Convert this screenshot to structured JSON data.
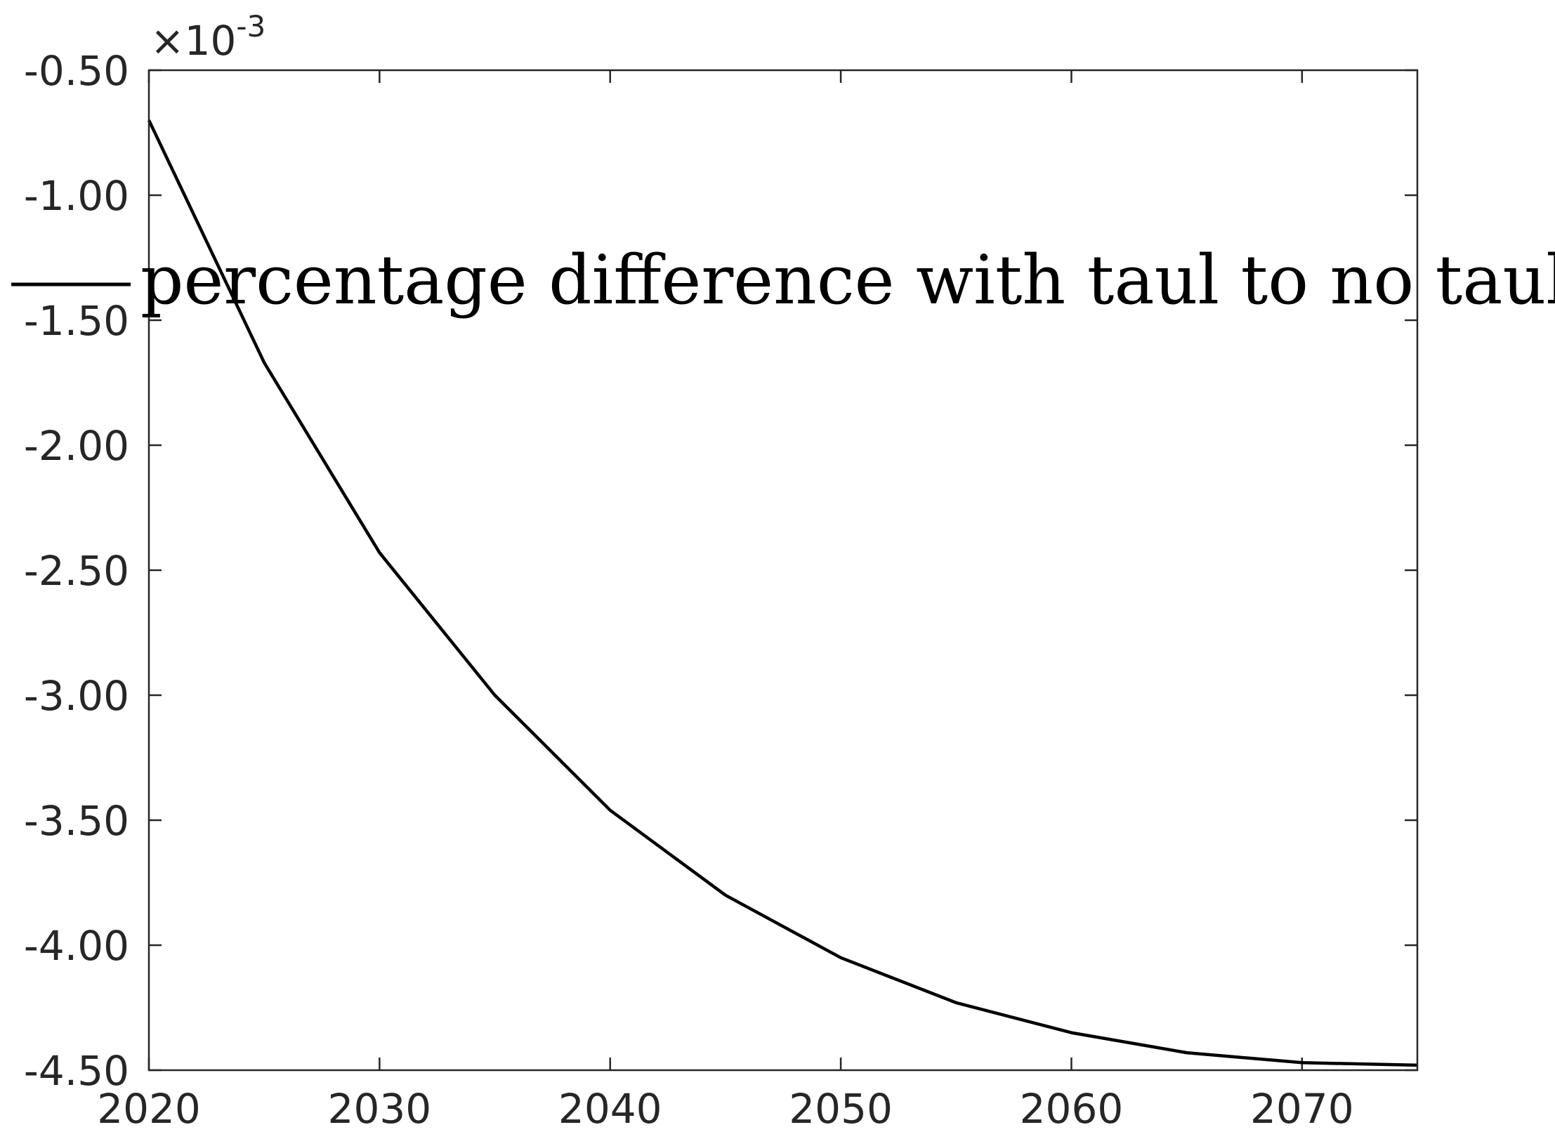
{
  "chart_data": {
    "type": "line",
    "title": "",
    "xlabel": "",
    "ylabel": "",
    "xlim": [
      2020,
      2075
    ],
    "ylim": [
      -4.5,
      -0.5
    ],
    "y_multiplier": {
      "base": "×10",
      "exponent": "-3"
    },
    "x_ticks": [
      2020,
      2030,
      2040,
      2050,
      2060,
      2070
    ],
    "x_tick_labels": [
      "2020",
      "2030",
      "2040",
      "2050",
      "2060",
      "2070"
    ],
    "y_ticks": [
      -0.5,
      -1.0,
      -1.5,
      -2.0,
      -2.5,
      -3.0,
      -3.5,
      -4.0,
      -4.5
    ],
    "y_tick_labels": [
      "-0.50",
      "-1.00",
      "-1.50",
      "-2.00",
      "-2.50",
      "-3.00",
      "-3.50",
      "-4.00",
      "-4.50"
    ],
    "grid": false,
    "legend_position": "top",
    "series": [
      {
        "name": "percentage difference with taul to no taul",
        "color": "#000000",
        "x": [
          2020,
          2025,
          2030,
          2035,
          2040,
          2045,
          2050,
          2055,
          2060,
          2065,
          2070,
          2075
        ],
        "y": [
          -0.7,
          -1.67,
          -2.43,
          -3.0,
          -3.46,
          -3.8,
          -4.05,
          -4.23,
          -4.35,
          -4.43,
          -4.47,
          -4.48
        ]
      }
    ]
  }
}
